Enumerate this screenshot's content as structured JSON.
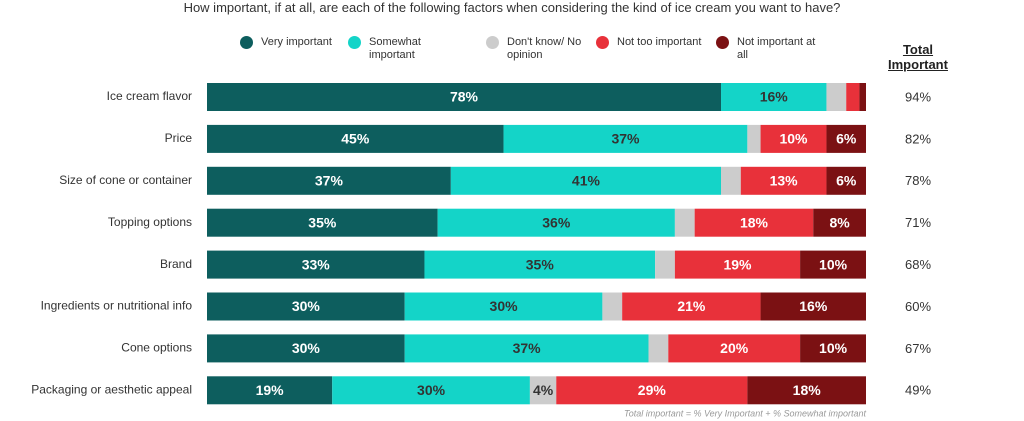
{
  "chart_data": {
    "type": "stacked-bar-horizontal",
    "title": "How important, if at all, are each of the following factors when considering the kind of ice cream you want to have?",
    "categories": [
      "Ice cream flavor",
      "Price",
      "Size of cone or container",
      "Topping options",
      "Brand",
      "Ingredients or nutritional info",
      "Cone options",
      "Packaging or aesthetic appeal"
    ],
    "xlim": [
      0,
      100
    ],
    "series": [
      {
        "name": "Very important",
        "color": "#0d5e5e",
        "values": [
          78,
          45,
          37,
          35,
          33,
          30,
          30,
          19
        ],
        "value_labels": [
          "78%",
          "45%",
          "37%",
          "35%",
          "33%",
          "30%",
          "30%",
          "19%"
        ]
      },
      {
        "name": "Somewhat important",
        "color": "#14d4c8",
        "values": [
          16,
          37,
          41,
          36,
          35,
          30,
          37,
          30
        ],
        "value_labels": [
          "16%",
          "37%",
          "41%",
          "36%",
          "35%",
          "30%",
          "37%",
          "30%"
        ]
      },
      {
        "name": "Don't know/ No opinion",
        "color": "#cccccc",
        "values": [
          3,
          2,
          3,
          3,
          3,
          3,
          3,
          4
        ],
        "value_labels": [
          null,
          null,
          null,
          null,
          null,
          null,
          null,
          "4%"
        ]
      },
      {
        "name": "Not too important",
        "color": "#e8313a",
        "values": [
          2,
          10,
          13,
          18,
          19,
          21,
          20,
          29
        ],
        "value_labels": [
          null,
          "10%",
          "13%",
          "18%",
          "19%",
          "21%",
          "20%",
          "29%"
        ]
      },
      {
        "name": "Not important at all",
        "color": "#7b1113",
        "values": [
          1,
          6,
          6,
          8,
          10,
          16,
          10,
          18
        ],
        "value_labels": [
          null,
          "6%",
          "6%",
          "8%",
          "10%",
          "16%",
          "10%",
          "18%"
        ]
      }
    ],
    "total": {
      "title": "Total Important",
      "values": [
        94,
        82,
        78,
        71,
        68,
        60,
        67,
        49
      ],
      "value_labels": [
        "94%",
        "82%",
        "78%",
        "71%",
        "68%",
        "60%",
        "67%",
        "49%"
      ]
    },
    "footnote": "Total important = % Very Important + % Somewhat important"
  }
}
